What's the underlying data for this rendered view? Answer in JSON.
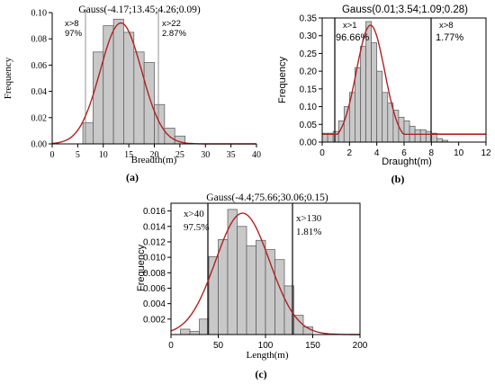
{
  "chart_data": [
    {
      "type": "bar",
      "panel": "a",
      "title": "Gauss(-4.17;13.45;4.26;0.09)",
      "xlabel": "Breadth(m)",
      "ylabel": "Frequency",
      "caption": "(a)",
      "xlim": [
        0,
        40
      ],
      "ylim": [
        0,
        0.1
      ],
      "xticks": [
        "0",
        "5",
        "10",
        "15",
        "20",
        "25",
        "30",
        "35",
        "40"
      ],
      "yticks": [
        "0.00",
        "0.02",
        "0.04",
        "0.06",
        "0.08",
        "0.10"
      ],
      "bin_width": 2,
      "bin_starts": [
        6,
        8,
        10,
        12,
        14,
        16,
        18,
        20,
        22,
        24
      ],
      "values": [
        0.016,
        0.07,
        0.09,
        0.095,
        0.085,
        0.07,
        0.062,
        0.03,
        0.012,
        0.006
      ],
      "gauss": {
        "y0": -4.17,
        "xc": 13.45,
        "w": 4.26,
        "A": 0.09
      },
      "vlines": [
        8,
        22
      ],
      "annotations": [
        {
          "text": "x>8",
          "sub": "97%"
        },
        {
          "text": "x>22",
          "sub": "2.87%"
        }
      ]
    },
    {
      "type": "bar",
      "panel": "b",
      "title": "Gauss(0.01;3.54;1.09;0.28)",
      "xlabel": "Draught(m)",
      "ylabel": "Frequency",
      "caption": "(b)",
      "xlim": [
        0,
        12
      ],
      "ylim": [
        0,
        0.35
      ],
      "xticks": [
        "0",
        "2",
        "4",
        "6",
        "8",
        "10",
        "12"
      ],
      "yticks": [
        "0.00",
        "0.05",
        "0.10",
        "0.15",
        "0.20",
        "0.25",
        "0.30",
        "0.35"
      ],
      "bin_width": 0.4,
      "bin_starts": [
        0,
        0.4,
        0.8,
        1.2,
        1.6,
        2.0,
        2.4,
        2.8,
        3.2,
        3.6,
        4.0,
        4.4,
        4.8,
        5.2,
        5.6,
        6.0,
        6.4,
        6.8,
        7.2,
        7.6,
        8.0,
        8.4,
        8.8
      ],
      "values": [
        0.025,
        0.025,
        0.03,
        0.06,
        0.1,
        0.14,
        0.21,
        0.27,
        0.34,
        0.28,
        0.2,
        0.14,
        0.11,
        0.09,
        0.07,
        0.06,
        0.045,
        0.035,
        0.035,
        0.03,
        0.025,
        0.01,
        0.005
      ],
      "gauss": {
        "y0": 0.01,
        "xc": 3.54,
        "w": 1.09,
        "A": 0.28
      },
      "vlines": [
        1,
        8
      ],
      "annotations": [
        {
          "text": "x>1",
          "sub": "96.66%"
        },
        {
          "text": "x>8",
          "sub": "1.77%"
        }
      ]
    },
    {
      "type": "bar",
      "panel": "c",
      "title": "Gauss(-4.4;75.66;30.06;0.15)",
      "xlabel": "Length(m)",
      "ylabel": "Frequency",
      "caption": "(c)",
      "xlim": [
        0,
        200
      ],
      "ylim": [
        0,
        0.017
      ],
      "xticks": [
        "0",
        "50",
        "100",
        "150",
        "200"
      ],
      "yticks": [
        "0.002",
        "0.004",
        "0.006",
        "0.008",
        "0.010",
        "0.012",
        "0.014",
        "0.016"
      ],
      "bin_width": 10,
      "bin_starts": [
        10,
        20,
        30,
        40,
        50,
        60,
        70,
        80,
        90,
        100,
        110,
        120,
        130,
        140
      ],
      "values": [
        0.0007,
        0.0004,
        0.002,
        0.0101,
        0.0123,
        0.0162,
        0.014,
        0.0115,
        0.0122,
        0.011,
        0.0097,
        0.0063,
        0.0025,
        0.001
      ],
      "gauss": {
        "y0": -4.4,
        "xc": 75.66,
        "w": 30.06,
        "A": 0.15
      },
      "vlines": [
        40,
        130
      ],
      "annotations": [
        {
          "text": "x>40",
          "sub": "97.5%"
        },
        {
          "text": "x>130",
          "sub": "1.81%"
        }
      ]
    }
  ]
}
